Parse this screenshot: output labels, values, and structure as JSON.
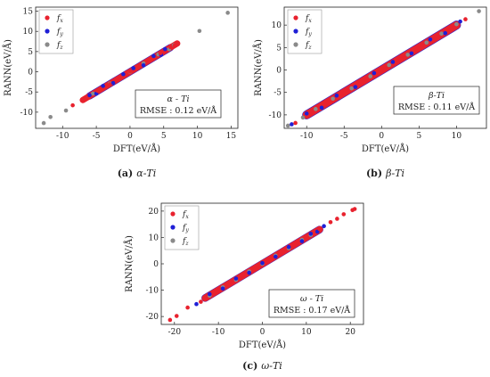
{
  "colors": {
    "fx": "#e8222e",
    "fy": "#1f1fd6",
    "fz": "#8a8a8a"
  },
  "chart_data": [
    {
      "type": "scatter",
      "caption_tag": "(a)",
      "caption_text": "α-Ti",
      "info_title": "α - Ti",
      "info_rmse": "RMSE : 0.12 eV/Å",
      "xlabel": "DFT(eV/Å)",
      "ylabel": "RANN(eV/Å)",
      "xlim": [
        -14,
        16
      ],
      "ylim": [
        -14,
        16
      ],
      "xticks": [
        -10,
        -5,
        0,
        5,
        10,
        15
      ],
      "yticks": [
        -10,
        -5,
        0,
        5,
        10,
        15
      ],
      "legend_position": "top-left",
      "rmse": 0.12,
      "series": [
        {
          "name": "f",
          "sub": "x",
          "color_key": "fx",
          "points": [
            [
              -8.5,
              -8.3
            ],
            [
              -6.5,
              -6.4
            ],
            [
              -4.8,
              -4.7
            ],
            [
              -3,
              -3.1
            ],
            [
              -1.5,
              -1.4
            ],
            [
              0,
              0.1
            ],
            [
              1.2,
              1.3
            ],
            [
              2.8,
              2.7
            ],
            [
              4.5,
              4.6
            ],
            [
              6,
              6.1
            ],
            [
              6.6,
              6.5
            ]
          ],
          "band": {
            "from": -7,
            "to": 7,
            "spread": 0.7
          }
        },
        {
          "name": "f",
          "sub": "y",
          "color_key": "fy",
          "points": [
            [
              -6,
              -5.8
            ],
            [
              -5,
              -5.4
            ],
            [
              -4,
              -3.5
            ],
            [
              -2.5,
              -2.8
            ],
            [
              -1,
              -0.6
            ],
            [
              0.5,
              0.9
            ],
            [
              2,
              1.6
            ],
            [
              3.5,
              3.9
            ],
            [
              4.6,
              4.2
            ],
            [
              5.2,
              5.6
            ]
          ],
          "band": {
            "from": -6,
            "to": 6,
            "spread": 0.8
          }
        },
        {
          "name": "f",
          "sub": "z",
          "color_key": "fz",
          "points": [
            [
              -12.8,
              -12.7
            ],
            [
              -11.8,
              -11.2
            ],
            [
              -9.5,
              -9.6
            ],
            [
              -5.5,
              -5.4
            ],
            [
              -3,
              -2.9
            ],
            [
              0,
              0
            ],
            [
              2,
              2.1
            ],
            [
              4.2,
              4.3
            ],
            [
              5.8,
              5.6
            ],
            [
              6.5,
              6.6
            ],
            [
              10.3,
              10.1
            ],
            [
              14.5,
              14.6
            ]
          ],
          "band": {
            "from": -6,
            "to": 6.5,
            "spread": 0.6
          }
        }
      ]
    },
    {
      "type": "scatter",
      "caption_tag": "(b)",
      "caption_text": "β-Ti",
      "info_title": "β-Ti",
      "info_rmse": "RMSE : 0.11 eV/Å",
      "xlabel": "DFT(eV/Å)",
      "ylabel": "RANN(eV/Å)",
      "xlim": [
        -13,
        14
      ],
      "ylim": [
        -13,
        14
      ],
      "xticks": [
        -10,
        -5,
        0,
        5,
        10
      ],
      "yticks": [
        -10,
        -5,
        0,
        5,
        10
      ],
      "legend_position": "top-left",
      "rmse": 0.11,
      "series": [
        {
          "name": "f",
          "sub": "x",
          "color_key": "fx",
          "points": [
            [
              -11.5,
              -11.8
            ],
            [
              -9.5,
              -9.4
            ],
            [
              -7,
              -6.8
            ],
            [
              -5,
              -5.2
            ],
            [
              -2,
              -1.9
            ],
            [
              0,
              0.2
            ],
            [
              2.5,
              2.4
            ],
            [
              5,
              5.1
            ],
            [
              7.5,
              7.3
            ],
            [
              9,
              9.2
            ],
            [
              11.2,
              11.3
            ]
          ],
          "band": {
            "from": -10,
            "to": 10,
            "spread": 0.8
          }
        },
        {
          "name": "f",
          "sub": "y",
          "color_key": "fy",
          "points": [
            [
              -12,
              -12.1
            ],
            [
              -10,
              -9.7
            ],
            [
              -8,
              -8.4
            ],
            [
              -6,
              -5.7
            ],
            [
              -3.5,
              -3.8
            ],
            [
              -1,
              -0.7
            ],
            [
              1.5,
              1.8
            ],
            [
              4,
              3.7
            ],
            [
              6.5,
              6.8
            ],
            [
              8.5,
              8.2
            ],
            [
              10.5,
              10.8
            ]
          ],
          "band": {
            "from": -10,
            "to": 10,
            "spread": 0.9
          }
        },
        {
          "name": "f",
          "sub": "z",
          "color_key": "fz",
          "points": [
            [
              -12.5,
              -12.4
            ],
            [
              -10.5,
              -10.6
            ],
            [
              -8.8,
              -8.7
            ],
            [
              -6.5,
              -6.4
            ],
            [
              -4,
              -4.1
            ],
            [
              -1.5,
              -1.4
            ],
            [
              1,
              1.1
            ],
            [
              3.5,
              3.4
            ],
            [
              6,
              6.1
            ],
            [
              8,
              8.1
            ],
            [
              10,
              10.2
            ],
            [
              13,
              13.1
            ]
          ],
          "band": {
            "from": -9,
            "to": 9,
            "spread": 0.7
          }
        }
      ]
    },
    {
      "type": "scatter",
      "caption_tag": "(c)",
      "caption_text": "ω-Ti",
      "info_title": "ω - Ti",
      "info_rmse": "RMSE : 0.17 eV/Å",
      "xlabel": "DFT(eV/Å)",
      "ylabel": "RANN(eV/Å)",
      "xlim": [
        -23,
        23
      ],
      "ylim": [
        -23,
        23
      ],
      "xticks": [
        -20,
        -10,
        0,
        10,
        20
      ],
      "yticks": [
        -20,
        -10,
        0,
        10,
        20
      ],
      "legend_position": "top-left",
      "rmse": 0.17,
      "series": [
        {
          "name": "f",
          "sub": "x",
          "color_key": "fx",
          "points": [
            [
              -21,
              -21.3
            ],
            [
              -19.5,
              -19.8
            ],
            [
              -17,
              -16.6
            ],
            [
              -14,
              -14.4
            ],
            [
              -11,
              -10.6
            ],
            [
              -8,
              -8.3
            ],
            [
              -5,
              -4.7
            ],
            [
              -2,
              -2.2
            ],
            [
              1,
              1.3
            ],
            [
              4,
              3.7
            ],
            [
              7,
              7.3
            ],
            [
              10,
              9.7
            ],
            [
              13,
              13.2
            ],
            [
              15.5,
              15.8
            ],
            [
              17,
              17.1
            ],
            [
              18.5,
              18.8
            ],
            [
              20.5,
              20.4
            ],
            [
              21,
              20.8
            ]
          ],
          "band": {
            "from": -13,
            "to": 13,
            "spread": 1.2
          }
        },
        {
          "name": "f",
          "sub": "y",
          "color_key": "fy",
          "points": [
            [
              -15,
              -15.3
            ],
            [
              -12,
              -11.5
            ],
            [
              -9,
              -9.4
            ],
            [
              -6,
              -5.6
            ],
            [
              -3,
              -3.4
            ],
            [
              0,
              0.3
            ],
            [
              3,
              2.7
            ],
            [
              6,
              6.4
            ],
            [
              9,
              8.6
            ],
            [
              11,
              11.4
            ],
            [
              12.5,
              12.2
            ],
            [
              14,
              14.3
            ]
          ],
          "band": {
            "from": -13,
            "to": 13,
            "spread": 1.3
          }
        },
        {
          "name": "f",
          "sub": "z",
          "color_key": "fz",
          "points": [
            [
              -12,
              -12.1
            ],
            [
              -9,
              -8.9
            ],
            [
              -6,
              -6.1
            ],
            [
              -3,
              -2.9
            ],
            [
              0,
              0
            ],
            [
              3,
              3.1
            ],
            [
              6,
              5.9
            ],
            [
              9,
              9.1
            ],
            [
              11,
              10.9
            ]
          ],
          "band": {
            "from": -11,
            "to": 11,
            "spread": 0.9
          }
        }
      ]
    }
  ]
}
